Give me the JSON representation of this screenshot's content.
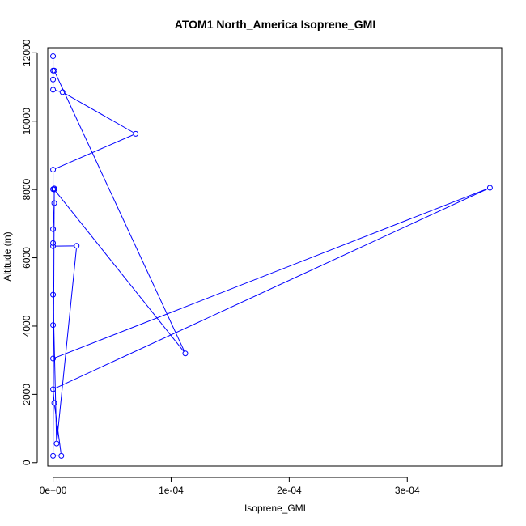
{
  "chart_data": {
    "type": "line",
    "title": "ATOM1 North_America Isoprene_GMI",
    "xlabel": "Isoprene_GMI",
    "ylabel": "Altitude (m)",
    "xlim": [
      -4.5e-06,
      0.00038
    ],
    "ylim": [
      -100,
      12150
    ],
    "x_ticks": [
      0,
      0.0001,
      0.0002,
      0.0003
    ],
    "x_tick_labels": [
      "0e+00",
      "1e-04",
      "2e-04",
      "3e-04"
    ],
    "y_ticks": [
      0,
      2000,
      4000,
      6000,
      8000,
      10000,
      12000
    ],
    "y_tick_labels": [
      "0",
      "2000",
      "4000",
      "6000",
      "8000",
      "10000",
      "12000"
    ],
    "grid": false,
    "series_color": "#0000ff",
    "series": [
      {
        "points": [
          {
            "x": 0.0,
            "y": 11900
          },
          {
            "x": 0.0,
            "y": 11480
          },
          {
            "x": 0.0,
            "y": 11220
          },
          {
            "x": 0.0,
            "y": 10920
          },
          {
            "x": 8e-06,
            "y": 10850
          },
          {
            "x": 7e-05,
            "y": 9630
          },
          {
            "x": 0.0,
            "y": 8580
          },
          {
            "x": 0.0,
            "y": 8010
          },
          {
            "x": 1e-06,
            "y": 8030
          },
          {
            "x": 1e-06,
            "y": 7600
          },
          {
            "x": 0.0,
            "y": 6840
          },
          {
            "x": 0.0,
            "y": 6430
          },
          {
            "x": 0.0,
            "y": 6340
          },
          {
            "x": 2e-05,
            "y": 6350
          },
          {
            "x": 3e-06,
            "y": 560
          },
          {
            "x": 0.0,
            "y": 4920
          },
          {
            "x": 0.0,
            "y": 4030
          },
          {
            "x": 0.0,
            "y": 3050
          },
          {
            "x": 0.00037,
            "y": 8050
          },
          {
            "x": 0.0,
            "y": 2150
          },
          {
            "x": 1e-06,
            "y": 1750
          },
          {
            "x": 7e-06,
            "y": 200
          },
          {
            "x": 0.0,
            "y": 200
          },
          {
            "x": 1e-06,
            "y": 8000
          },
          {
            "x": 0.000112,
            "y": 3200
          },
          {
            "x": 1e-06,
            "y": 11480
          }
        ]
      }
    ]
  }
}
